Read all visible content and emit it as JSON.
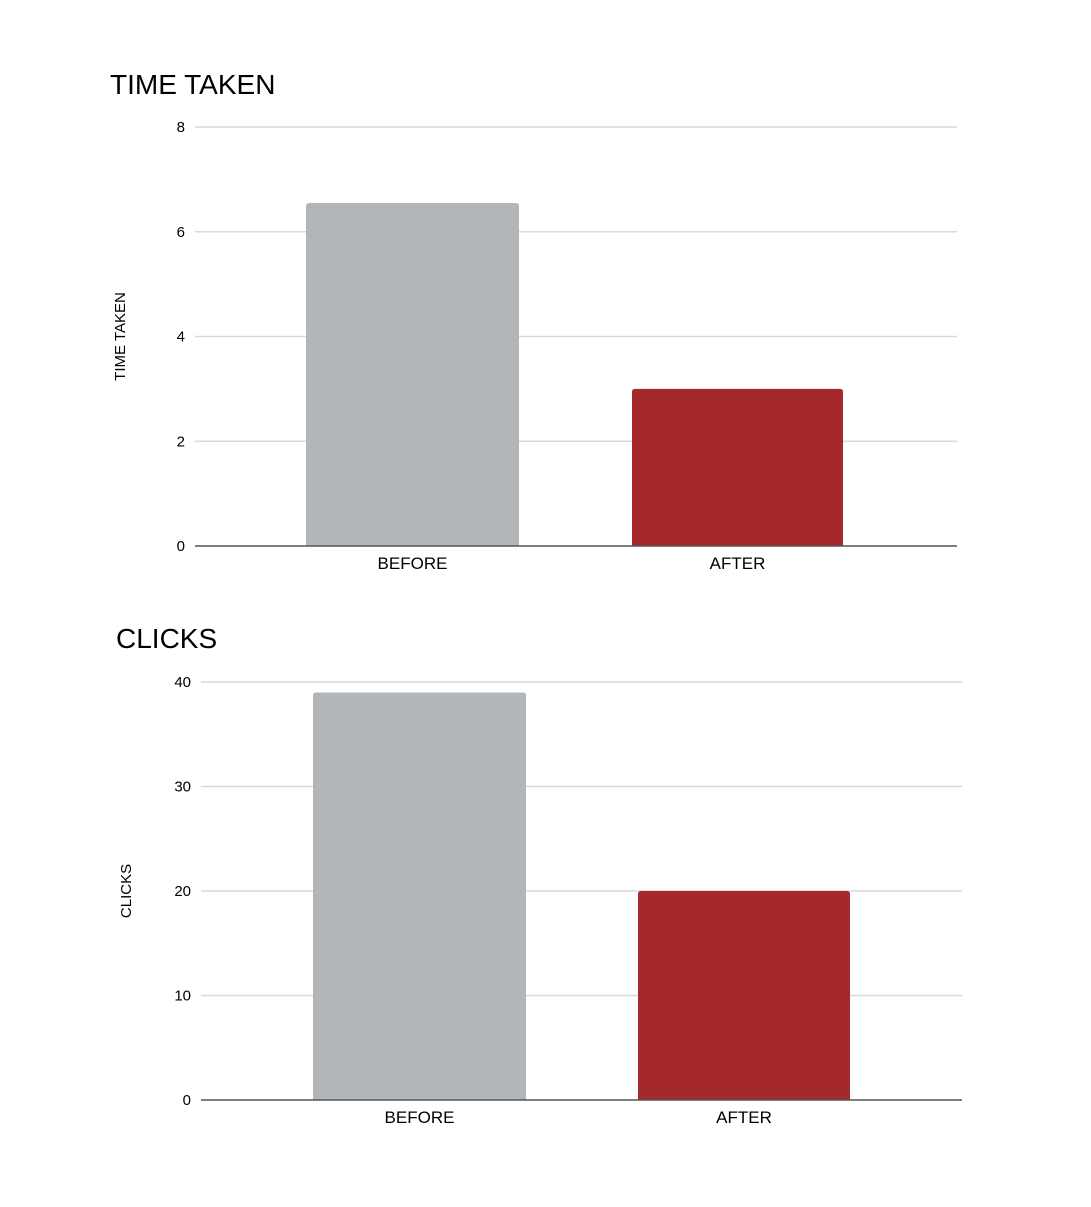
{
  "colors": {
    "before": "#b2b6b9",
    "after": "#a5292a",
    "grid": "#d9d9d9",
    "baseline": "#555555",
    "text": "#000000"
  },
  "chart_data": [
    {
      "type": "bar",
      "title": "TIME TAKEN",
      "xlabel": "",
      "ylabel": "TIME TAKEN",
      "categories": [
        "BEFORE",
        "AFTER"
      ],
      "values": [
        6.55,
        3.0
      ],
      "ylim": [
        0,
        8
      ],
      "yticks": [
        0,
        2,
        4,
        6,
        8
      ],
      "grid": true,
      "legend": "none",
      "bar_colors": [
        "#b2b6b9",
        "#a5292a"
      ]
    },
    {
      "type": "bar",
      "title": "CLICKS",
      "xlabel": "",
      "ylabel": "CLICKS",
      "categories": [
        "BEFORE",
        "AFTER"
      ],
      "values": [
        39,
        20
      ],
      "ylim": [
        0,
        40
      ],
      "yticks": [
        0,
        10,
        20,
        30,
        40
      ],
      "grid": true,
      "legend": "none",
      "bar_colors": [
        "#b2b6b9",
        "#a5292a"
      ]
    }
  ]
}
